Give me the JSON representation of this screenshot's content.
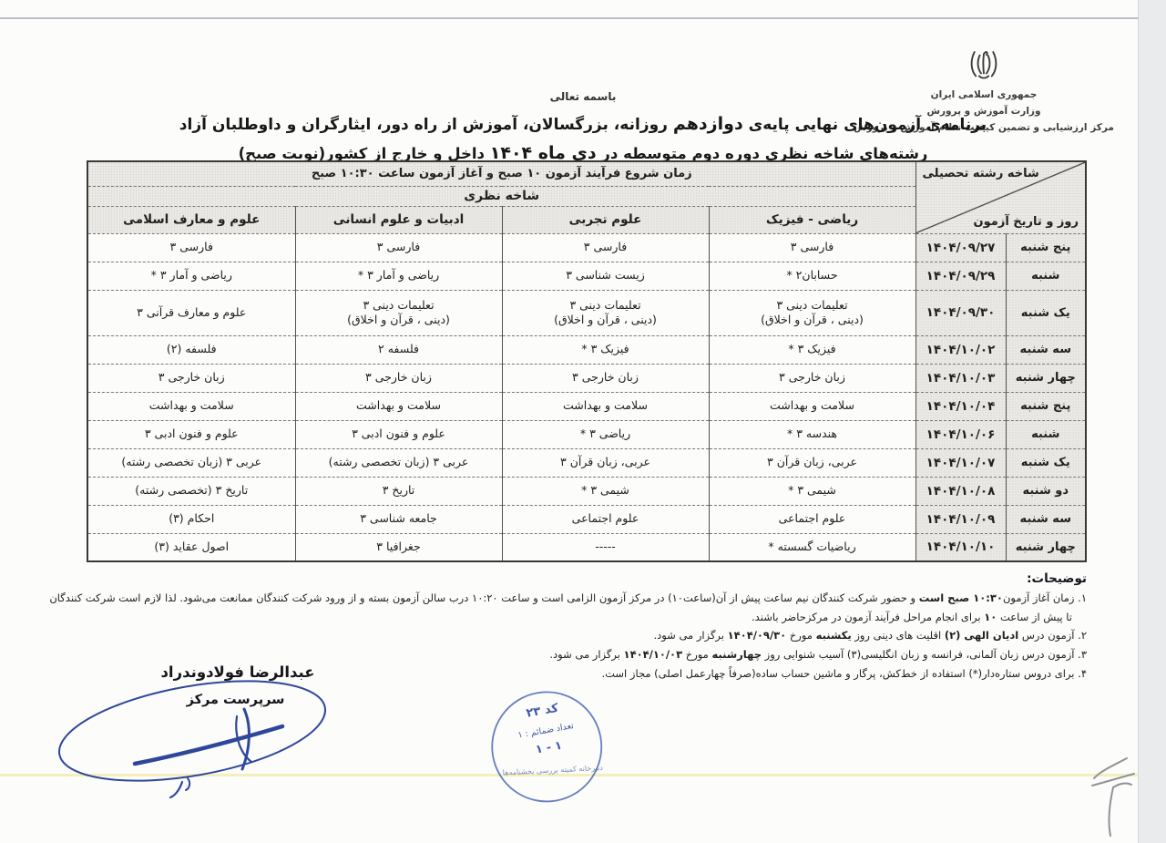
{
  "ministry": {
    "line1": "جمهوری اسلامی ایران",
    "line2": "وزارت آموزش و پرورش",
    "line3": "مرکز ارزشیابی و تضمین کیفیت نظام آموزش و پرورش"
  },
  "basmala": "باسمه تعالی",
  "title": {
    "l1a": "برنامه‌ی آزمون‌های نهایی پایه‌ی ",
    "l1b": "دوازدهم",
    "l1c": " روزانه، بزرگسالان، آموزش از راه دور، ایثارگران و داوطلبان آزاد",
    "l2a": "رشته‌های شاخه نظری دوره دوم متوسطه در ",
    "l2b": "دی ماه ۱۴۰۴",
    "l2c": " داخل و خارج از کشور(نوبت صبح)"
  },
  "table": {
    "time_header": {
      "p1": "زمان شروع فرآیند آزمون ",
      "b1": "۱۰ صبح",
      "p2": " و آغاز آزمون ساعت ",
      "b2": "۱۰:۳۰ صبح"
    },
    "branch_header": "شاخه نظری",
    "corner_top": "شاخه رشته تحصیلی",
    "corner_bottom": "روز و تاریخ آزمون",
    "columns": [
      "ریاضی - فیزیک",
      "علوم تجربی",
      "ادبیات و علوم انسانی",
      "علوم و معارف اسلامی"
    ],
    "rows": [
      {
        "day": "پنج شنبه",
        "date": "۱۴۰۴/۰۹/۲۷",
        "cells": [
          "فارسی ۳",
          "فارسی ۳",
          "فارسی ۳",
          "فارسی ۳"
        ]
      },
      {
        "day": "شنبه",
        "date": "۱۴۰۴/۰۹/۲۹",
        "cells": [
          "حسابان۲ *",
          "زیست شناسی ۳",
          "ریاضی و آمار ۳ *",
          "ریاضی و آمار ۳ *"
        ]
      },
      {
        "day": "یک شنبه",
        "date": "۱۴۰۴/۰۹/۳۰",
        "cells": [
          "تعلیمات دینی ۳\n(دینی ، قرآن و اخلاق)",
          "تعلیمات دینی ۳\n(دینی ، قرآن و اخلاق)",
          "تعلیمات دینی ۳\n(دینی ، قرآن و اخلاق)",
          "علوم و معارف قرآنی ۳"
        ]
      },
      {
        "day": "سه شنبه",
        "date": "۱۴۰۴/۱۰/۰۲",
        "cells": [
          "فیزیک ۳ *",
          "فیزیک ۳ *",
          "فلسفه ۲",
          "فلسفه (۲)"
        ]
      },
      {
        "day": "چهار شنبه",
        "date": "۱۴۰۴/۱۰/۰۳",
        "cells": [
          "زبان خارجی ۳",
          "زبان خارجی ۳",
          "زبان خارجی ۳",
          "زبان خارجی ۳"
        ]
      },
      {
        "day": "پنج شنبه",
        "date": "۱۴۰۴/۱۰/۰۴",
        "cells": [
          "سلامت و بهداشت",
          "سلامت و بهداشت",
          "سلامت و بهداشت",
          "سلامت و بهداشت"
        ]
      },
      {
        "day": "شنبه",
        "date": "۱۴۰۴/۱۰/۰۶",
        "cells": [
          "هندسه ۳ *",
          "ریاضی ۳ *",
          "علوم و فنون ادبی ۳",
          "علوم و فنون ادبی ۳"
        ]
      },
      {
        "day": "یک شنبه",
        "date": "۱۴۰۴/۱۰/۰۷",
        "cells": [
          "عربی، زبان قرآن ۳",
          "عربی، زبان قرآن ۳",
          "عربی ۳ (زبان تخصصی رشته)",
          "عربی ۳ (زبان تخصصی رشته)"
        ]
      },
      {
        "day": "دو شنبه",
        "date": "۱۴۰۴/۱۰/۰۸",
        "cells": [
          "شیمی ۳ *",
          "شیمی ۳ *",
          "تاریخ ۳",
          "تاریخ ۳ (تخصصی رشته)"
        ]
      },
      {
        "day": "سه شنبه",
        "date": "۱۴۰۴/۱۰/۰۹",
        "cells": [
          "علوم اجتماعی",
          "علوم اجتماعی",
          "جامعه شناسی ۳",
          "احکام (۳)"
        ]
      },
      {
        "day": "چهار شنبه",
        "date": "۱۴۰۴/۱۰/۱۰",
        "cells": [
          "ریاضیات گسسته *",
          "-----",
          "جغرافیا ۳",
          "اصول عقاید (۳)"
        ]
      }
    ]
  },
  "notes": {
    "heading": "توضیحات:",
    "items": [
      [
        {
          "t": "۱. زمان آغاز آزمون",
          "b": false
        },
        {
          "t": "۱۰:۳۰ صبح است",
          "b": true
        },
        {
          "t": " و حضور شرکت کنندگان نیم ساعت پیش از آن(ساعت۱۰) در مرکز آزمون الزامی است و ساعت ۱۰:۲۰ درب سالن آزمون بسته و از ورود شرکت کنندگان ممانعت می‌شود. لذا لازم است شرکت کنندگان تا پیش از ساعت ",
          "b": false
        },
        {
          "t": "۱۰",
          "b": true
        },
        {
          "t": " برای انجام مراحل فرآیند آزمون در مرکزحاضر باشند.",
          "b": false
        }
      ],
      [
        {
          "t": "۲. آزمون درس ",
          "b": false
        },
        {
          "t": "ادیان الهی (۲)",
          "b": true
        },
        {
          "t": " اقلیت های دینی روز ",
          "b": false
        },
        {
          "t": "یکشنبه",
          "b": true
        },
        {
          "t": " مورخ ",
          "b": false
        },
        {
          "t": "۱۴۰۴/۰۹/۳۰",
          "b": true
        },
        {
          "t": " برگزار می شود.",
          "b": false
        }
      ],
      [
        {
          "t": "۳. آزمون درس زبان آلمانی، فرانسه و زبان انگلیسی(۳) آسیب شنوایی روز ",
          "b": false
        },
        {
          "t": "چهارشنبه",
          "b": true
        },
        {
          "t": " مورخ ",
          "b": false
        },
        {
          "t": "۱۴۰۴/۱۰/۰۳",
          "b": true
        },
        {
          "t": " برگزار می شود.",
          "b": false
        }
      ],
      [
        {
          "t": "۴. برای دروس ستاره‌دار(*) استفاده از خط‌کش، پرگار و ماشین حساب ساده(صرفاً چهارعمل اصلی) مجاز است.",
          "b": false
        }
      ]
    ]
  },
  "signature": {
    "name": "عبدالرضا فولادوندراد",
    "role": "سرپرست مرکز"
  },
  "stamp": {
    "line1": "کد ۲۳",
    "line2": "تعداد ضمائم : ۱",
    "line3": "۱ - ۱",
    "curved": "دبیرخانه کمیته بررسی بخشنامه‌ها"
  },
  "colors": {
    "ink": "#23211e",
    "pen_blue": "#2f479b",
    "stamp_blue": "#4059a9",
    "highlight_yellow": "#f2ecb0"
  }
}
